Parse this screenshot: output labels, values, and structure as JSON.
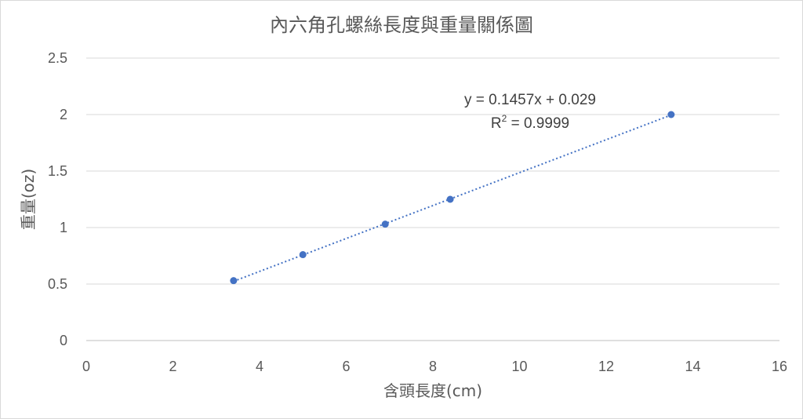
{
  "chart_data": {
    "type": "scatter",
    "title": "內六角孔螺絲長度與重量關係圖",
    "xlabel": "含頭長度(cm)",
    "ylabel": "重量(oz)",
    "xlim": [
      0,
      16
    ],
    "ylim": [
      0,
      2.5
    ],
    "xticks": [
      "0",
      "2",
      "4",
      "6",
      "8",
      "10",
      "12",
      "14",
      "16"
    ],
    "yticks": [
      "0",
      "0.5",
      "1",
      "1.5",
      "2",
      "2.5"
    ],
    "grid": true,
    "legend": "none",
    "series": [
      {
        "color": "#4472c4",
        "points": [
          {
            "x": 3.4,
            "y": 0.53
          },
          {
            "x": 5.0,
            "y": 0.76
          },
          {
            "x": 6.9,
            "y": 1.03
          },
          {
            "x": 8.4,
            "y": 1.25
          },
          {
            "x": 13.5,
            "y": 2.0
          }
        ]
      }
    ],
    "trendline": {
      "type": "linear",
      "slope": 0.1457,
      "intercept": 0.029,
      "x_range": [
        3.4,
        13.5
      ],
      "color": "#4472c4",
      "style": "dotted",
      "equation": "y = 0.1457x + 0.029",
      "r2_label": "R",
      "r2_superscript": "2",
      "r2_value": " = 0.9999"
    }
  }
}
